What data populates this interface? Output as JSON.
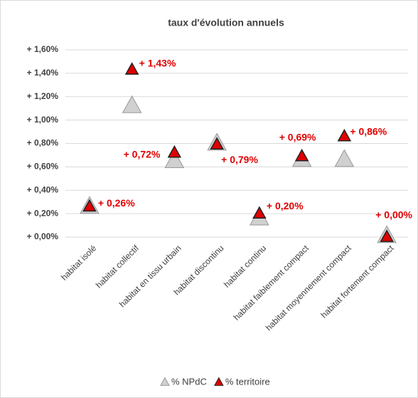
{
  "chart_data": {
    "type": "scatter",
    "title": "taux d'évolution annuels",
    "categories": [
      "habitat isolé",
      "habitat collectif",
      "habitat en tissu urbain",
      "habitat discontinu",
      "habitat continu",
      "habitat faiblement compact",
      "habitat moyennement compact",
      "habitat fortement compact"
    ],
    "series": [
      {
        "name": "% NPdC",
        "color": "#d0d0d0",
        "values": [
          0.26,
          1.12,
          0.65,
          0.8,
          0.16,
          0.66,
          0.66,
          0.01
        ]
      },
      {
        "name": "% territoire",
        "color": "#e00000",
        "values": [
          0.26,
          1.43,
          0.72,
          0.79,
          0.2,
          0.69,
          0.86,
          0.0
        ],
        "value_labels": [
          "+ 0,26%",
          "+ 1,43%",
          "+ 0,72%",
          "+ 0,79%",
          "+ 0,20%",
          "+ 0,69%",
          "+ 0,86%",
          "+ 0,00%"
        ]
      }
    ],
    "ylim": [
      0,
      1.6
    ],
    "yticks": [
      {
        "value": 0,
        "label": "+ 0,00%"
      },
      {
        "value": 0.2,
        "label": "+ 0,20%"
      },
      {
        "value": 0.4,
        "label": "+ 0,40%"
      },
      {
        "value": 0.6,
        "label": "+ 0,60%"
      },
      {
        "value": 0.8,
        "label": "+ 0,80%"
      },
      {
        "value": 1.0,
        "label": "+ 1,00%"
      },
      {
        "value": 1.2,
        "label": "+ 1,20%"
      },
      {
        "value": 1.4,
        "label": "+ 1,40%"
      },
      {
        "value": 1.6,
        "label": "+ 1,60%"
      }
    ],
    "grid": true,
    "legend": "bottom"
  }
}
